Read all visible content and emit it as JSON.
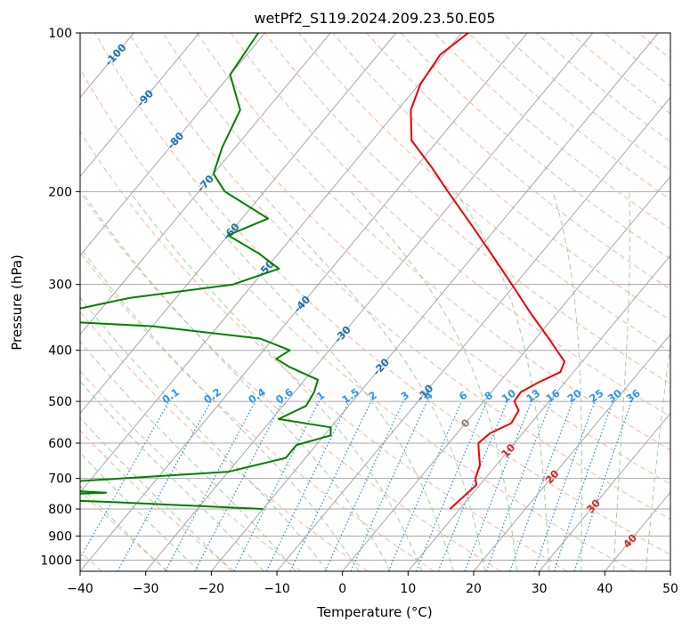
{
  "chart_data": {
    "type": "line",
    "subtype": "skew-T log-P diagram",
    "title": "wetPf2_S119.2024.209.23.50.E05",
    "xlabel": "Temperature (°C)",
    "ylabel": "Pressure (hPa)",
    "xlim": [
      -40,
      50
    ],
    "ylim": [
      1050,
      100
    ],
    "y_scale": "log",
    "x_ticks": [
      -40,
      -30,
      -20,
      -10,
      0,
      10,
      20,
      30,
      40,
      50
    ],
    "x_tick_labels": [
      "−40",
      "−30",
      "−20",
      "−10",
      "0",
      "10",
      "20",
      "30",
      "40",
      "50"
    ],
    "y_ticks": [
      100,
      200,
      300,
      400,
      500,
      600,
      700,
      800,
      900,
      1000
    ],
    "y_tick_labels": [
      "100",
      "200",
      "300",
      "400",
      "500",
      "600",
      "700",
      "800",
      "900",
      "1000"
    ],
    "grid": true,
    "colors": {
      "temperature": "#ee0000",
      "dewpoint": "#008000",
      "isotherm": "#a8a8a8",
      "dry_adiabat": "#f7a98a",
      "moist_adiabat": "#8fc98f",
      "mixing_ratio": "#1e88e5",
      "isotherm_label_cold": "#1f6fb2",
      "isotherm_label_warm": "#d62728",
      "isotherm_label_zero": "#808080",
      "mixing_ratio_label": "#2f95ec"
    },
    "series": [
      {
        "key": "temperature",
        "points": [
          [
            100,
            -49
          ],
          [
            110,
            -50.5
          ],
          [
            125,
            -49.8
          ],
          [
            140,
            -48
          ],
          [
            160,
            -44
          ],
          [
            180,
            -37.5
          ],
          [
            200,
            -32
          ],
          [
            230,
            -24.5
          ],
          [
            260,
            -18
          ],
          [
            300,
            -10.5
          ],
          [
            340,
            -4
          ],
          [
            380,
            2
          ],
          [
            410,
            6
          ],
          [
            420,
            7.3
          ],
          [
            440,
            8
          ],
          [
            460,
            6
          ],
          [
            480,
            4.5
          ],
          [
            500,
            4.7
          ],
          [
            520,
            6.5
          ],
          [
            550,
            7
          ],
          [
            575,
            5
          ],
          [
            600,
            4.5
          ],
          [
            630,
            6
          ],
          [
            660,
            7.5
          ],
          [
            700,
            8.5
          ],
          [
            720,
            9.5
          ],
          [
            760,
            9
          ],
          [
            800,
            8.5
          ]
        ]
      },
      {
        "key": "dewpoint",
        "points": [
          [
            100,
            -81
          ],
          [
            120,
            -80
          ],
          [
            140,
            -74
          ],
          [
            165,
            -72
          ],
          [
            185,
            -70
          ],
          [
            200,
            -66
          ],
          [
            225,
            -56
          ],
          [
            242,
            -60
          ],
          [
            262,
            -53
          ],
          [
            280,
            -48
          ],
          [
            300,
            -53
          ],
          [
            318,
            -67
          ],
          [
            350,
            -80
          ],
          [
            360,
            -60
          ],
          [
            380,
            -42
          ],
          [
            400,
            -36
          ],
          [
            415,
            -37
          ],
          [
            430,
            -34
          ],
          [
            455,
            -28
          ],
          [
            480,
            -27
          ],
          [
            510,
            -26.5
          ],
          [
            540,
            -29
          ],
          [
            560,
            -20
          ],
          [
            580,
            -19
          ],
          [
            605,
            -23
          ],
          [
            640,
            -23
          ],
          [
            680,
            -30
          ],
          [
            706,
            -50
          ],
          [
            725,
            -64
          ],
          [
            745,
            -46
          ],
          [
            760,
            -64
          ],
          [
            775,
            -45
          ],
          [
            800,
            -20
          ]
        ]
      }
    ],
    "isotherm_labels": [
      "-100",
      "-90",
      "-80",
      "-70",
      "-60",
      "-50",
      "-40",
      "-30",
      "-20",
      "-10",
      "0",
      "10",
      "20",
      "30",
      "40"
    ],
    "mixing_ratio_labels": [
      "0.1",
      "0.2",
      "0.4",
      "0.6",
      "1",
      "1.5",
      "2",
      "3",
      "4",
      "6",
      "8",
      "10",
      "13",
      "16",
      "20",
      "25",
      "30",
      "36"
    ]
  }
}
